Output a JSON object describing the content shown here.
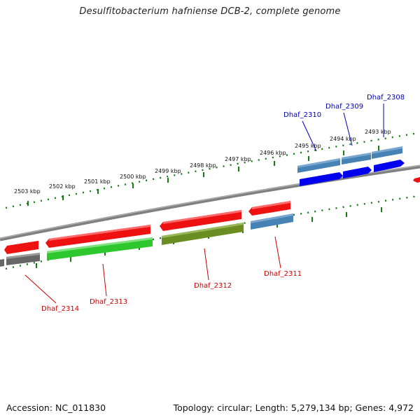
{
  "title": "Desulfitobacterium hafniense DCB-2, complete genome",
  "accession": "Accession: NC_011830",
  "topology": "Topology: circular; Length: 5,279,134 bp; Genes: 4,972",
  "colors": {
    "backbone": "#808080",
    "tick": "#1a7a1a",
    "red": "#ee1111",
    "green": "#2ec82e",
    "olive": "#6b8e23",
    "steelblue": "#4682b4",
    "blue": "#0000ee",
    "gray": "#666666",
    "label_red": "#cc0000",
    "label_blue": "#0000bb"
  },
  "scale_labels": [
    "2503 kbp",
    "2502 kbp",
    "2501 kbp",
    "2500 kbp",
    "2499 kbp",
    "2498 kbp",
    "2497 kbp",
    "2496 kbp",
    "2495 kbp",
    "2494 kbp",
    "2493 kbp"
  ],
  "gene_labels": [
    "Dhaf_2314",
    "Dhaf_2313",
    "Dhaf_2312",
    "Dhaf_2311",
    "Dhaf_2310",
    "Dhaf_2309",
    "Dhaf_2308"
  ]
}
